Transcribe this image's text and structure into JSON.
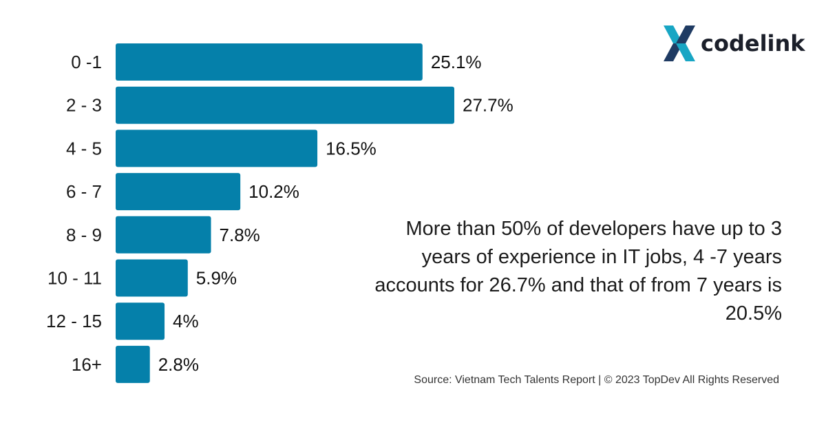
{
  "logo": {
    "text": "codelink",
    "icon": "codelink-x-logo-mark"
  },
  "annotation": "More than 50% of developers have up to 3 years of experience in IT jobs, 4 -7 years accounts for 26.7% and that of from 7 years is 20.5%",
  "source": "Source: Vietnam Tech Talents Report | © 2023 TopDev All Rights Reserved",
  "colors": {
    "bar": "#0580aa",
    "logo_teal": "#18a6c4",
    "logo_navy": "#1f3b63"
  },
  "chart_data": {
    "type": "bar",
    "orientation": "horizontal",
    "categories": [
      "0 -1",
      "2 - 3",
      "4 - 5",
      "6 - 7",
      "8 - 9",
      "10 - 11",
      "12 - 15",
      "16+"
    ],
    "values": [
      25.1,
      27.7,
      16.5,
      10.2,
      7.8,
      5.9,
      4,
      2.8
    ],
    "value_labels": [
      "25.1%",
      "27.7%",
      "16.5%",
      "10.2%",
      "7.8%",
      "5.9%",
      "4%",
      "2.8%"
    ],
    "title": "",
    "xlabel": "",
    "ylabel": "",
    "xlim": [
      0,
      27.7
    ],
    "grid": false,
    "legend": "none"
  }
}
